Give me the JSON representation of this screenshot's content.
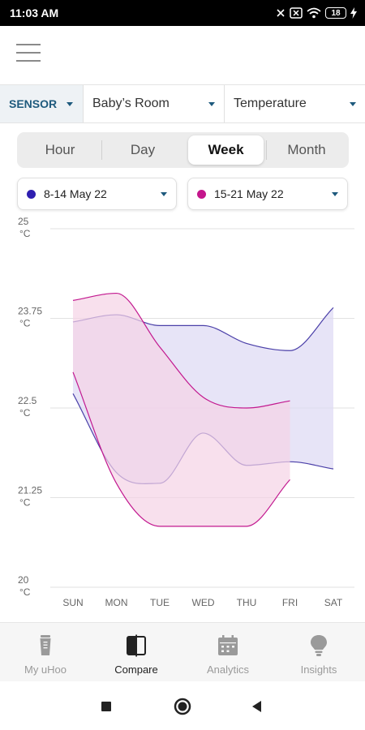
{
  "status_bar": {
    "time": "11:03 AM",
    "battery": "18"
  },
  "filters": {
    "sensor_label": "SENSOR",
    "room": "Baby’s Room",
    "metric": "Temperature"
  },
  "period_tabs": [
    {
      "label": "Hour",
      "active": false
    },
    {
      "label": "Day",
      "active": false
    },
    {
      "label": "Week",
      "active": true
    },
    {
      "label": "Month",
      "active": false
    }
  ],
  "date_ranges": [
    {
      "label": "8-14 May 22",
      "color": "#2f1fb0"
    },
    {
      "label": "15-21 May 22",
      "color": "#c4168c"
    }
  ],
  "chart_data": {
    "type": "area",
    "categories": [
      "SUN",
      "MON",
      "TUE",
      "WED",
      "THU",
      "FRI",
      "SAT"
    ],
    "y_ticks": [
      {
        "value": 25,
        "label": "25",
        "unit": "°C"
      },
      {
        "value": 23.75,
        "label": "23.75",
        "unit": "°C"
      },
      {
        "value": 22.5,
        "label": "22.5",
        "unit": "°C"
      },
      {
        "value": 21.25,
        "label": "21.25",
        "unit": "°C"
      },
      {
        "value": 20,
        "label": "20",
        "unit": "°C"
      }
    ],
    "ylim": [
      20,
      25
    ],
    "grid": true,
    "series": [
      {
        "name": "8-14 May 22",
        "color": "#4a3fa8",
        "fill": "#ddd9f4",
        "max": [
          23.7,
          23.8,
          23.65,
          23.65,
          23.4,
          23.3,
          23.9
        ],
        "min": [
          22.7,
          21.6,
          21.45,
          22.15,
          21.7,
          21.75,
          21.65
        ]
      },
      {
        "name": "15-21 May 22",
        "color": "#c2188f",
        "fill": "#f5d3e6",
        "max": [
          24.0,
          24.1,
          23.35,
          22.65,
          22.5,
          22.6,
          null
        ],
        "min": [
          23.0,
          21.45,
          20.85,
          20.85,
          20.85,
          21.5,
          null
        ]
      }
    ]
  },
  "bottom_nav": [
    {
      "label": "My uHoo",
      "icon": "device-icon",
      "active": false
    },
    {
      "label": "Compare",
      "icon": "compare-icon",
      "active": true
    },
    {
      "label": "Analytics",
      "icon": "calendar-icon",
      "active": false
    },
    {
      "label": "Insights",
      "icon": "lightbulb-icon",
      "active": false
    }
  ]
}
